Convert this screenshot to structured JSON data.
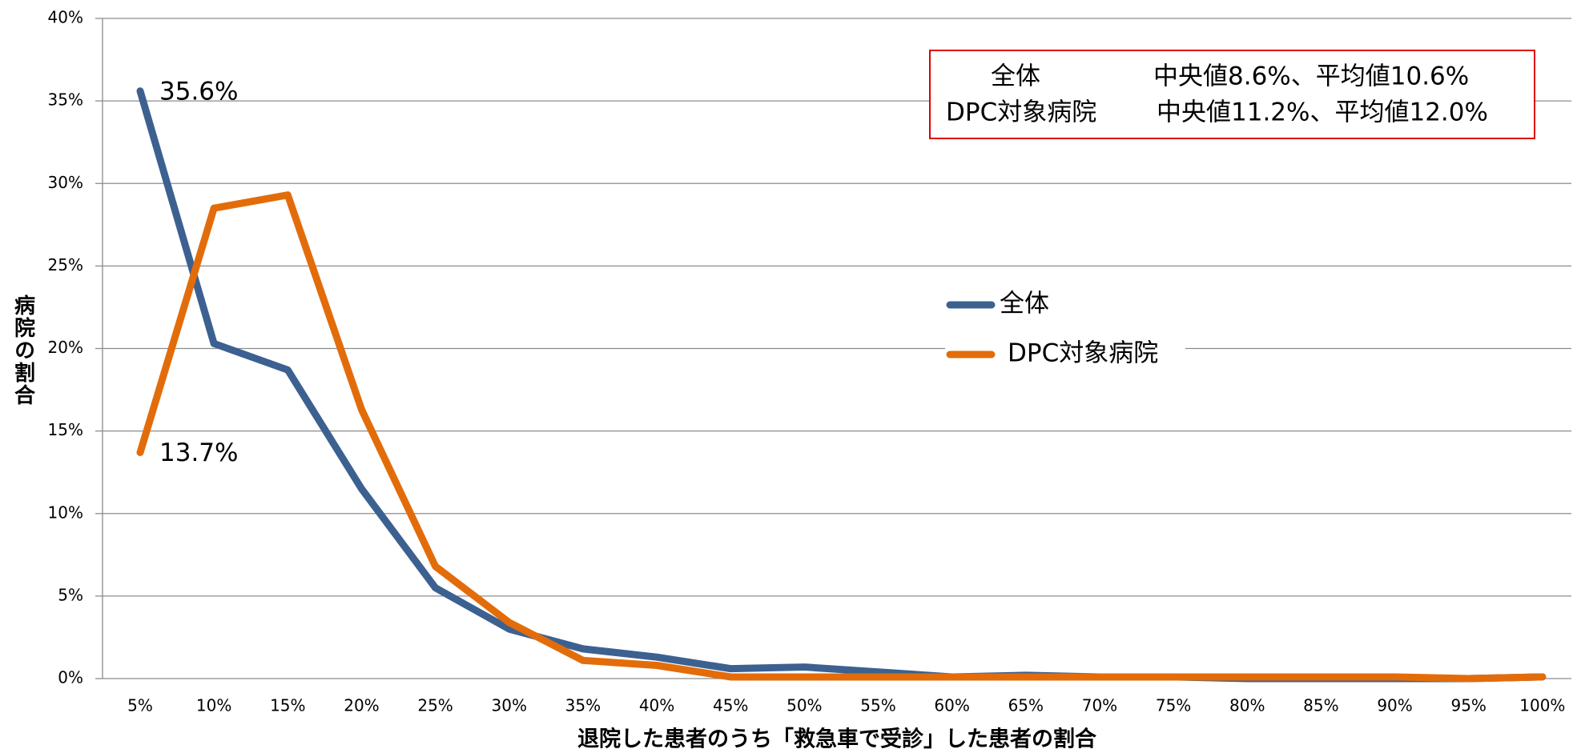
{
  "chart_data": {
    "type": "line",
    "x_label": "退院した患者のうち「救急車で受診」した患者の割合",
    "y_label": "病院の割合",
    "categories": [
      "5%",
      "10%",
      "15%",
      "20%",
      "25%",
      "30%",
      "35%",
      "40%",
      "45%",
      "50%",
      "55%",
      "60%",
      "65%",
      "70%",
      "75%",
      "80%",
      "85%",
      "90%",
      "95%",
      "100%"
    ],
    "series": [
      {
        "name": "全体",
        "color": "#3c6190",
        "values": [
          35.6,
          20.3,
          18.7,
          11.5,
          5.5,
          3.0,
          1.8,
          1.3,
          0.6,
          0.7,
          0.4,
          0.1,
          0.2,
          0.1,
          0.1,
          0.0,
          0.0,
          0.0,
          0.0,
          0.1
        ],
        "value_labels": [
          "35.6%",
          null,
          null,
          null,
          null,
          null,
          null,
          null,
          null,
          null,
          null,
          null,
          null,
          null,
          null,
          null,
          null,
          null,
          null,
          null
        ]
      },
      {
        "name": "DPC対象病院",
        "color": "#e36c0a",
        "values": [
          13.7,
          28.5,
          29.3,
          16.3,
          6.8,
          3.4,
          1.1,
          0.8,
          0.1,
          0.1,
          0.1,
          0.1,
          0.1,
          0.1,
          0.1,
          0.1,
          0.1,
          0.1,
          0.0,
          0.1
        ],
        "value_labels": [
          "13.7%",
          null,
          null,
          null,
          null,
          null,
          null,
          null,
          null,
          null,
          null,
          null,
          null,
          null,
          null,
          null,
          null,
          null,
          null,
          null
        ]
      }
    ],
    "ylim": [
      0,
      40
    ],
    "yticks": [
      {
        "value": 0,
        "label": "0%"
      },
      {
        "value": 5,
        "label": "5%"
      },
      {
        "value": 10,
        "label": "10%"
      },
      {
        "value": 15,
        "label": "15%"
      },
      {
        "value": 20,
        "label": "20%"
      },
      {
        "value": 25,
        "label": "25%"
      },
      {
        "value": 30,
        "label": "30%"
      },
      {
        "value": 35,
        "label": "35%"
      },
      {
        "value": 40,
        "label": "40%"
      }
    ],
    "grid": true,
    "stats_box": [
      {
        "label": "全体",
        "text": "中央値8.6%、平均値10.6%"
      },
      {
        "label": "DPC対象病院",
        "text": "中央値11.2%、平均値12.0%"
      }
    ],
    "box_color": "#e00000"
  }
}
